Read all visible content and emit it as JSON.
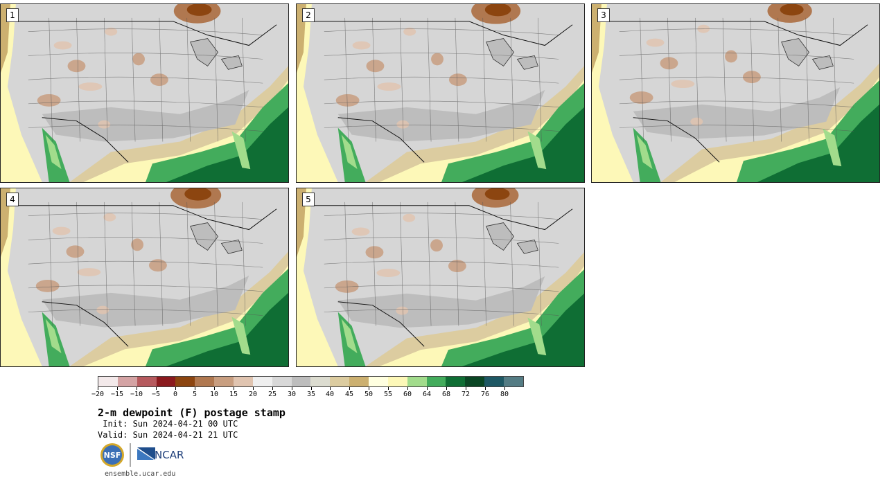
{
  "panels": [
    {
      "label": "1"
    },
    {
      "label": "2"
    },
    {
      "label": "3"
    },
    {
      "label": "4"
    },
    {
      "label": "5"
    }
  ],
  "colorbar": {
    "colors": [
      "#f3e9ea",
      "#d4a3a4",
      "#b65a5e",
      "#8b1a1e",
      "#8c4510",
      "#b07850",
      "#c89e80",
      "#e0c4b0",
      "#efefef",
      "#d8d8d8",
      "#bdbdbd",
      "#dcdcd0",
      "#dccca0",
      "#ccb070",
      "#ffffe0",
      "#fdf8b8",
      "#a2dc8c",
      "#43ac5c",
      "#0f6e34",
      "#0a4624",
      "#1e5864",
      "#547c84"
    ],
    "tick_labels": [
      "−20",
      "−15",
      "−10",
      "−5",
      "0",
      "5",
      "10",
      "15",
      "20",
      "25",
      "30",
      "35",
      "40",
      "45",
      "50",
      "55",
      "60",
      "64",
      "68",
      "72",
      "76",
      "80"
    ]
  },
  "title": "2-m dewpoint (F) postage stamp",
  "init": " Init: Sun 2024-04-21 00 UTC",
  "valid": "Valid: Sun 2024-04-21 21 UTC",
  "logos": {
    "nsf": "NSF",
    "ncar": "NCAR"
  },
  "site": "ensemble.ucar.edu"
}
